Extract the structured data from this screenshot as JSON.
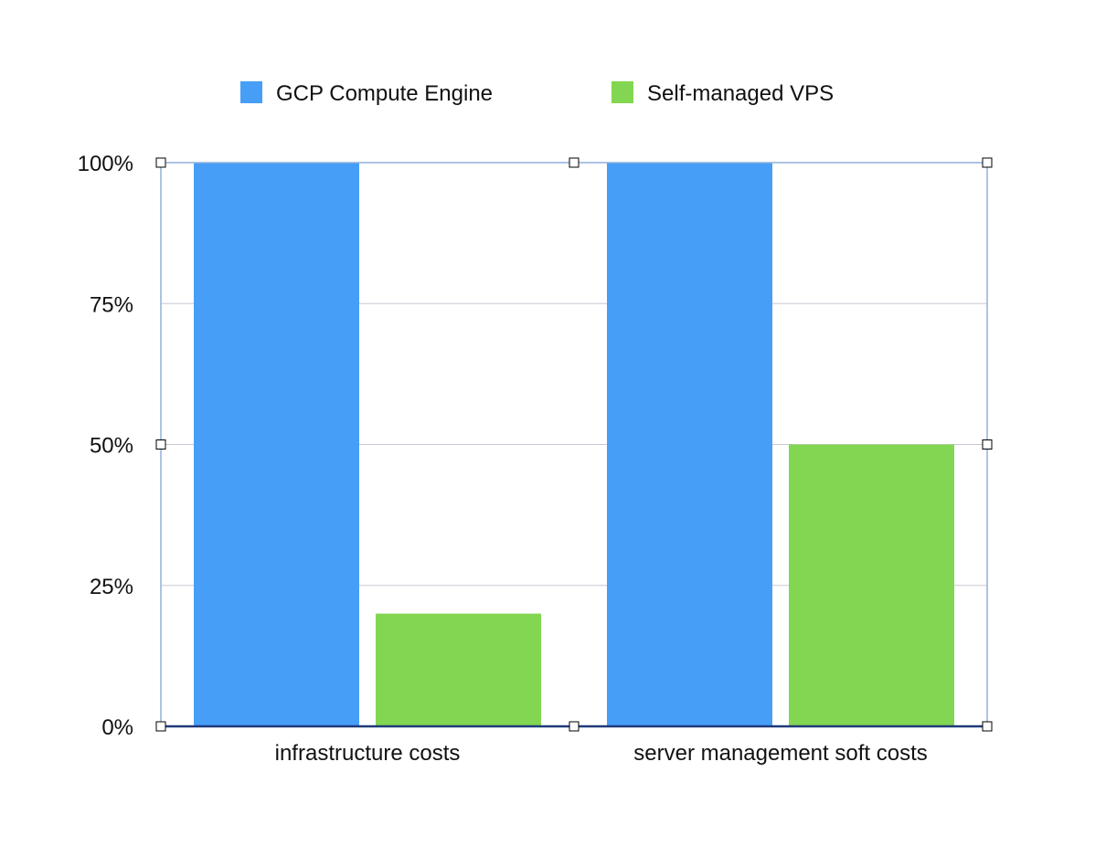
{
  "chart_data": {
    "type": "bar",
    "categories": [
      "infrastructure costs",
      "server management soft costs"
    ],
    "series": [
      {
        "name": "GCP Compute Engine",
        "values": [
          100,
          100
        ],
        "color": "#479ef7"
      },
      {
        "name": "Self-managed VPS",
        "values": [
          20,
          50
        ],
        "color": "#83d651"
      }
    ],
    "ylim": [
      0,
      100
    ],
    "yticks": [
      0,
      25,
      50,
      75,
      100
    ],
    "ytick_labels": [
      "0%",
      "25%",
      "50%",
      "75%",
      "100%"
    ],
    "title": "",
    "xlabel": "",
    "ylabel": "",
    "grid": true,
    "legend_position": "top",
    "selection_frame": true,
    "colors": {
      "grid": "#c8c8d4",
      "frame": "#90b0dc",
      "baseline": "#1f3a7a",
      "handle_fill": "#ffffff",
      "handle_stroke": "#000000"
    }
  }
}
